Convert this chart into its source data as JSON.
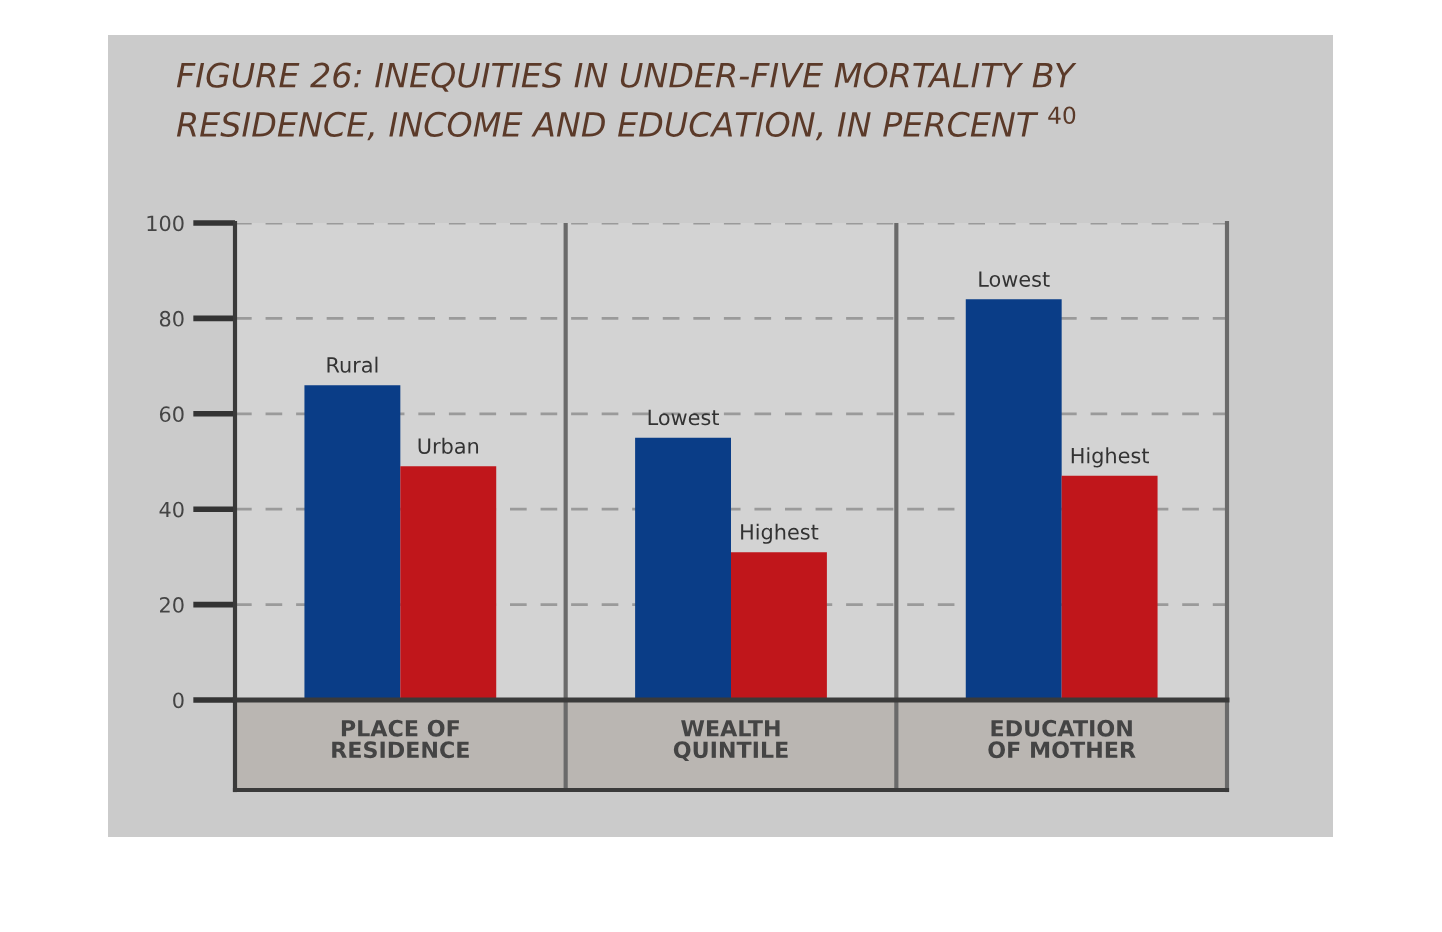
{
  "chart_data": {
    "type": "bar",
    "title": "FIGURE 26: INEQUITIES IN UNDER-FIVE MORTALITY BY\nRESIDENCE, INCOME AND EDUCATION, IN PERCENT $^{40}$",
    "categories": [
      "PLACE OF\nRESIDENCE",
      "WEALTH\nQUINTILE",
      "EDUCATION\nOF MOTHER"
    ],
    "series": [
      {
        "color": "#0a3d87",
        "values": [
          66,
          55,
          84
        ],
        "value_labels": [
          "Rural",
          "Lowest",
          "Lowest"
        ]
      },
      {
        "color": "#c0161b",
        "values": [
          49,
          31,
          47
        ],
        "value_labels": [
          "Urban",
          "Highest",
          "Highest"
        ]
      }
    ],
    "ylim": [
      0,
      100
    ],
    "yticks": [
      0,
      20,
      40,
      60,
      80,
      100
    ],
    "grid": "y"
  }
}
